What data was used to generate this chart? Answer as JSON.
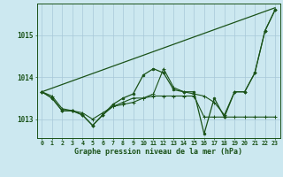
{
  "background_color": "#cce8f0",
  "grid_color": "#a8c8d8",
  "line_color": "#1a5218",
  "title": "Graphe pression niveau de la mer (hPa)",
  "ylim": [
    1012.55,
    1015.75
  ],
  "yticks": [
    1013,
    1014,
    1015
  ],
  "xlim": [
    -0.5,
    23.5
  ],
  "xticks": [
    0,
    1,
    2,
    3,
    4,
    5,
    6,
    7,
    8,
    9,
    10,
    11,
    12,
    13,
    14,
    15,
    16,
    17,
    18,
    19,
    20,
    21,
    22,
    23
  ],
  "series": {
    "diagonal": {
      "x": [
        0,
        23
      ],
      "y": [
        1013.65,
        1015.65
      ]
    },
    "flat_line": {
      "x": [
        0,
        1,
        2,
        3,
        4,
        5,
        6,
        7,
        8,
        9,
        10,
        11,
        12,
        13,
        14,
        15,
        16,
        17,
        18,
        19,
        20,
        21,
        22,
        23
      ],
      "y": [
        1013.65,
        1013.55,
        1013.25,
        1013.2,
        1013.15,
        1013.0,
        1013.15,
        1013.3,
        1013.35,
        1013.4,
        1013.5,
        1013.55,
        1013.55,
        1013.55,
        1013.55,
        1013.55,
        1013.05,
        1013.05,
        1013.05,
        1013.05,
        1013.05,
        1013.05,
        1013.05,
        1013.05
      ]
    },
    "main_curve": {
      "x": [
        0,
        1,
        2,
        3,
        4,
        5,
        6,
        7,
        8,
        9,
        10,
        11,
        12,
        13,
        14,
        15,
        16,
        17,
        18,
        19,
        20,
        21,
        22,
        23
      ],
      "y": [
        1013.65,
        1013.5,
        1013.2,
        1013.2,
        1013.1,
        1012.85,
        1013.1,
        1013.35,
        1013.5,
        1013.6,
        1014.05,
        1014.2,
        1014.1,
        1013.7,
        1013.65,
        1013.65,
        1012.65,
        1013.5,
        1013.05,
        1013.65,
        1013.65,
        1014.1,
        1015.1,
        1015.6
      ]
    },
    "second_curve": {
      "x": [
        0,
        1,
        2,
        3,
        4,
        5,
        6,
        7,
        8,
        9,
        10,
        11,
        12,
        13,
        14,
        15,
        16,
        17,
        18,
        19,
        20,
        21,
        22,
        23
      ],
      "y": [
        1013.65,
        1013.5,
        1013.2,
        1013.2,
        1013.1,
        1012.85,
        1013.1,
        1013.3,
        1013.4,
        1013.5,
        1013.5,
        1013.6,
        1014.2,
        1013.75,
        1013.65,
        1013.6,
        1013.55,
        1013.4,
        1013.1,
        1013.65,
        1013.65,
        1014.1,
        1015.1,
        1015.6
      ]
    }
  }
}
